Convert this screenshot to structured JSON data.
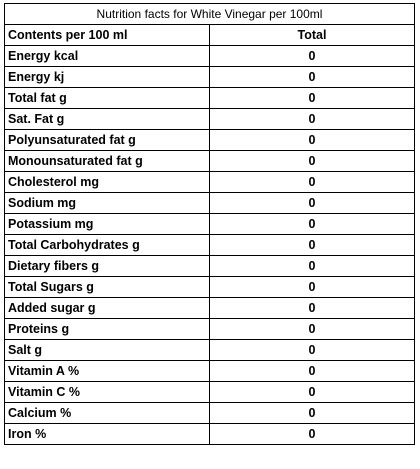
{
  "title": "Nutrition facts for White Vinegar per 100ml",
  "header": {
    "label": "Contents per 100 ml",
    "value": "Total"
  },
  "rows": [
    {
      "label": "Energy kcal",
      "value": "0"
    },
    {
      "label": "Energy kj",
      "value": "0"
    },
    {
      "label": "Total fat g",
      "value": "0"
    },
    {
      "label": "Sat. Fat g",
      "value": "0"
    },
    {
      "label": "Polyunsaturated fat g",
      "value": "0"
    },
    {
      "label": "Monounsaturated fat g",
      "value": "0"
    },
    {
      "label": "Cholesterol mg",
      "value": "0"
    },
    {
      "label": "Sodium mg",
      "value": "0"
    },
    {
      "label": "Potassium mg",
      "value": "0"
    },
    {
      "label": "Total Carbohydrates g",
      "value": "0"
    },
    {
      "label": "Dietary fibers g",
      "value": "0"
    },
    {
      "label": "Total Sugars g",
      "value": "0"
    },
    {
      "label": "Added sugar g",
      "value": "0"
    },
    {
      "label": "Proteins g",
      "value": "0"
    },
    {
      "label": "Salt g",
      "value": "0"
    },
    {
      "label": "Vitamin A %",
      "value": "0"
    },
    {
      "label": "Vitamin C %",
      "value": "0"
    },
    {
      "label": "Calcium %",
      "value": "0"
    },
    {
      "label": "Iron %",
      "value": "0"
    }
  ]
}
